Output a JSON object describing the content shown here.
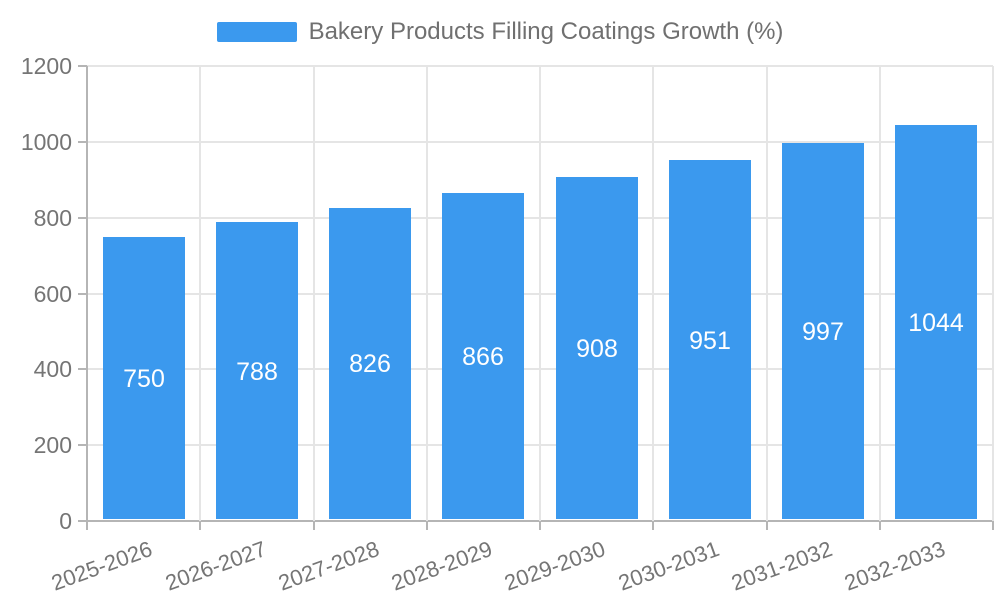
{
  "legend": {
    "label": "Bakery Products Filling Coatings Growth (%)"
  },
  "chart_data": {
    "type": "bar",
    "title": "Bakery Products Filling Coatings Growth (%)",
    "categories": [
      "2025-2026",
      "2026-2027",
      "2027-2028",
      "2028-2029",
      "2029-2030",
      "2030-2031",
      "2031-2032",
      "2032-2033"
    ],
    "values": [
      750,
      788,
      826,
      866,
      908,
      951,
      997,
      1044
    ],
    "xlabel": "",
    "ylabel": "",
    "ylim": [
      0,
      1200
    ],
    "yticks": [
      0,
      200,
      400,
      600,
      800,
      1000,
      1200
    ],
    "grid": true,
    "legend_position": "top",
    "x_label_rotation_deg": -20,
    "value_labels": "inside-center",
    "colors": {
      "bar": "#3B99EE",
      "value_label": "#FFFFFF",
      "axis_text": "#757575",
      "title_text": "#707070",
      "grid_line": "#E5E5E5",
      "axis_line": "#B5B5B5",
      "background": "#FFFFFF"
    }
  }
}
